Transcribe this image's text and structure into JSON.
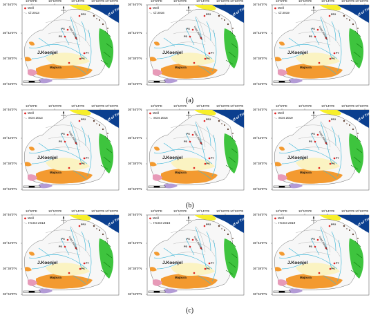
{
  "axes": {
    "lat_ticks": [
      "36°46'0\"N",
      "36°42'0\"N",
      "36°38'0\"N",
      "36°34'0\"N"
    ],
    "lon_ticks": [
      "10°6'0\"E",
      "10°10'0\"E",
      "10°14'0\"E",
      "10°18'0\"E",
      "10°22'0\"E"
    ]
  },
  "map_labels": {
    "koenjel": "J.Koenjel",
    "majoura": "Majoura",
    "sea": "Gulf of Tunis",
    "well_codes": [
      "PP2",
      "P3",
      "P5",
      "P6",
      "P7"
    ],
    "wadi": "Wadi Meliane"
  },
  "legend": {
    "well": "Well"
  },
  "rows": [
    {
      "caption": "(a)",
      "panels": [
        {
          "legend_label": "Cl 2013"
        },
        {
          "legend_label": "Cl 2016"
        },
        {
          "legend_label": "Cl 2019"
        }
      ]
    },
    {
      "caption": "(b)",
      "panels": [
        {
          "legend_label": "SO4 2013"
        },
        {
          "legend_label": "SO4 2016"
        },
        {
          "legend_label": "SO4 2019"
        }
      ]
    },
    {
      "caption": "(c)",
      "panels": [
        {
          "legend_label": "HCO3 2013"
        },
        {
          "legend_label": "HCO3 2016"
        },
        {
          "legend_label": "HCO3 2019"
        }
      ]
    }
  ],
  "colors": {
    "sea": "#0b3f8f",
    "orange": "#f39a30",
    "green": "#3ec43e",
    "yellow": "#f7ef2a",
    "cream": "#fbf3c2",
    "pink": "#e79ab8",
    "purple": "#b39bd6",
    "river": "#3fb7d8",
    "well": "#e02020",
    "contour": "#9a9a9a"
  }
}
